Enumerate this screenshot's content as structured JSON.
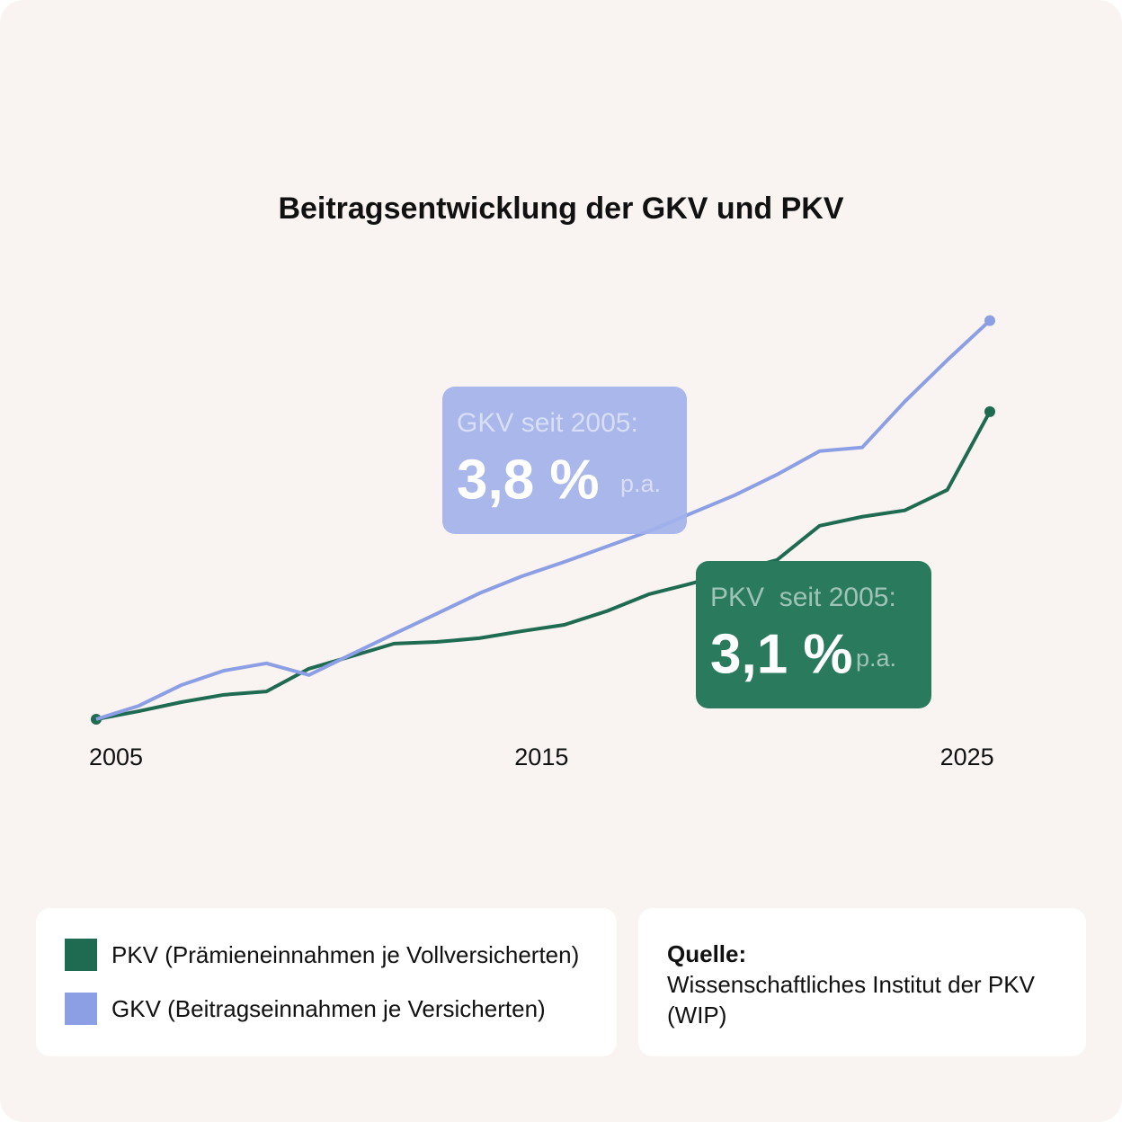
{
  "chart_data": {
    "type": "line",
    "title": "Beitragsentwicklung der GKV und PKV",
    "x": [
      2005,
      2006,
      2007,
      2008,
      2009,
      2010,
      2011,
      2012,
      2013,
      2014,
      2015,
      2016,
      2017,
      2018,
      2019,
      2020,
      2021,
      2022,
      2023,
      2024,
      2025,
      2026
    ],
    "xlim": [
      2005,
      2026
    ],
    "xticks": [
      2005,
      2015,
      2025
    ],
    "ylim": [
      100,
      230
    ],
    "series": [
      {
        "name": "PKV (Prämieneinnahmen je Vollversicherten)",
        "color": "#1f6b51",
        "values": [
          100,
          102.4,
          105.1,
          107.3,
          108.3,
          115.1,
          118.8,
          122.6,
          123.1,
          124.2,
          126.3,
          128.2,
          132.3,
          137.4,
          140.6,
          144.1,
          147.6,
          157.8,
          160.5,
          162.4,
          168.5,
          191.9
        ]
      },
      {
        "name": "GKV (Beitragseinnahmen je Versicherten)",
        "color": "#8c9fe4",
        "values": [
          100,
          104,
          110.2,
          114.5,
          116.7,
          113.2,
          119.4,
          125.5,
          131.5,
          137.6,
          142.7,
          147,
          151.6,
          156.2,
          161.6,
          166.9,
          173.1,
          180.1,
          181.2,
          194.9,
          207.3,
          219.1
        ]
      }
    ],
    "annotations": [
      {
        "label": "GKV seit 2005:",
        "value": "3,8 %",
        "unit": "p.a.",
        "color": "#a2b1ea"
      },
      {
        "label": "PKV  seit 2005:",
        "value": "3,1 %",
        "unit": "p.a.",
        "color": "#2a7a5e"
      }
    ],
    "source": {
      "label": "Quelle:",
      "text": "Wissenschaftliches Institut der PKV (WIP)"
    }
  }
}
